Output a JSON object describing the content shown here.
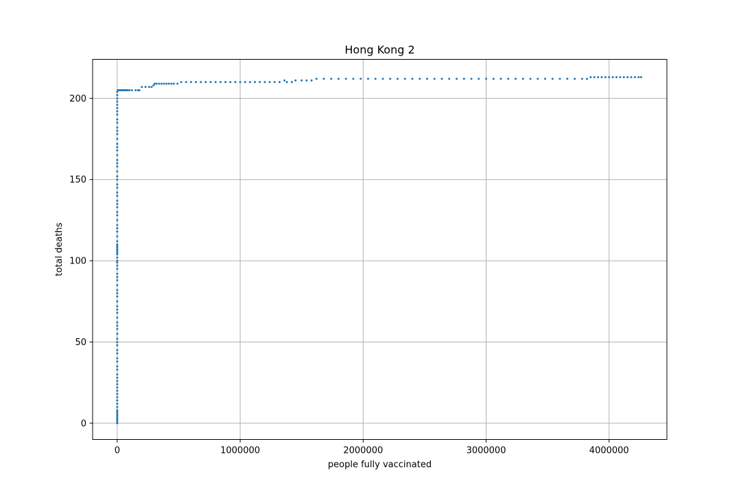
{
  "chart_data": {
    "type": "scatter",
    "title": "Hong Kong 2",
    "xlabel": "people fully vaccinated",
    "ylabel": "total deaths",
    "xlim": [
      -200000,
      4470000
    ],
    "ylim": [
      -10,
      224
    ],
    "xticks": [
      0,
      1000000,
      2000000,
      3000000,
      4000000
    ],
    "xtick_labels": [
      "0",
      "1000000",
      "2000000",
      "3000000",
      "4000000"
    ],
    "yticks": [
      0,
      50,
      100,
      150,
      200
    ],
    "ytick_labels": [
      "0",
      "50",
      "100",
      "150",
      "200"
    ],
    "grid": true,
    "marker_color": "#1f77b4",
    "series": [
      {
        "points": [
          [
            0,
            0
          ],
          [
            0,
            1
          ],
          [
            0,
            2
          ],
          [
            0,
            3
          ],
          [
            0,
            4
          ],
          [
            0,
            5
          ],
          [
            0,
            6
          ],
          [
            0,
            7
          ],
          [
            0,
            8
          ],
          [
            0,
            10
          ],
          [
            0,
            12
          ],
          [
            0,
            14
          ],
          [
            0,
            16
          ],
          [
            0,
            18
          ],
          [
            0,
            20
          ],
          [
            0,
            22
          ],
          [
            0,
            24
          ],
          [
            0,
            26
          ],
          [
            0,
            28
          ],
          [
            0,
            30
          ],
          [
            0,
            33
          ],
          [
            0,
            35
          ],
          [
            0,
            38
          ],
          [
            0,
            40
          ],
          [
            0,
            43
          ],
          [
            0,
            45
          ],
          [
            0,
            48
          ],
          [
            0,
            50
          ],
          [
            0,
            52
          ],
          [
            0,
            55
          ],
          [
            0,
            58
          ],
          [
            0,
            60
          ],
          [
            0,
            62
          ],
          [
            0,
            65
          ],
          [
            0,
            68
          ],
          [
            0,
            70
          ],
          [
            0,
            72
          ],
          [
            0,
            75
          ],
          [
            0,
            78
          ],
          [
            0,
            80
          ],
          [
            0,
            82
          ],
          [
            0,
            85
          ],
          [
            0,
            88
          ],
          [
            0,
            90
          ],
          [
            0,
            92
          ],
          [
            0,
            95
          ],
          [
            0,
            97
          ],
          [
            0,
            99
          ],
          [
            0,
            100
          ],
          [
            0,
            102
          ],
          [
            0,
            104
          ],
          [
            0,
            105
          ],
          [
            0,
            106
          ],
          [
            0,
            107
          ],
          [
            0,
            108
          ],
          [
            0,
            109
          ],
          [
            0,
            110
          ],
          [
            0,
            112
          ],
          [
            0,
            115
          ],
          [
            0,
            118
          ],
          [
            0,
            120
          ],
          [
            0,
            122
          ],
          [
            0,
            125
          ],
          [
            0,
            128
          ],
          [
            0,
            130
          ],
          [
            0,
            133
          ],
          [
            0,
            135
          ],
          [
            0,
            137
          ],
          [
            0,
            140
          ],
          [
            0,
            142
          ],
          [
            0,
            145
          ],
          [
            0,
            147
          ],
          [
            0,
            150
          ],
          [
            0,
            152
          ],
          [
            0,
            155
          ],
          [
            0,
            158
          ],
          [
            0,
            160
          ],
          [
            0,
            162
          ],
          [
            0,
            165
          ],
          [
            0,
            168
          ],
          [
            0,
            170
          ],
          [
            0,
            172
          ],
          [
            0,
            175
          ],
          [
            0,
            178
          ],
          [
            0,
            180
          ],
          [
            0,
            182
          ],
          [
            0,
            185
          ],
          [
            0,
            187
          ],
          [
            0,
            190
          ],
          [
            0,
            192
          ],
          [
            0,
            194
          ],
          [
            0,
            196
          ],
          [
            0,
            198
          ],
          [
            0,
            200
          ],
          [
            0,
            202
          ],
          [
            0,
            204
          ],
          [
            5000,
            205
          ],
          [
            15000,
            205
          ],
          [
            25000,
            205
          ],
          [
            35000,
            205
          ],
          [
            45000,
            205
          ],
          [
            55000,
            205
          ],
          [
            65000,
            205
          ],
          [
            75000,
            205
          ],
          [
            85000,
            205
          ],
          [
            100000,
            205
          ],
          [
            120000,
            205
          ],
          [
            150000,
            205
          ],
          [
            170000,
            205
          ],
          [
            180000,
            205
          ],
          [
            200000,
            207
          ],
          [
            230000,
            207
          ],
          [
            260000,
            207
          ],
          [
            280000,
            207
          ],
          [
            295000,
            208
          ],
          [
            305000,
            209
          ],
          [
            320000,
            209
          ],
          [
            340000,
            209
          ],
          [
            360000,
            209
          ],
          [
            380000,
            209
          ],
          [
            400000,
            209
          ],
          [
            420000,
            209
          ],
          [
            440000,
            209
          ],
          [
            460000,
            209
          ],
          [
            490000,
            209
          ],
          [
            520000,
            210
          ],
          [
            560000,
            210
          ],
          [
            600000,
            210
          ],
          [
            640000,
            210
          ],
          [
            680000,
            210
          ],
          [
            720000,
            210
          ],
          [
            760000,
            210
          ],
          [
            800000,
            210
          ],
          [
            840000,
            210
          ],
          [
            880000,
            210
          ],
          [
            920000,
            210
          ],
          [
            960000,
            210
          ],
          [
            1000000,
            210
          ],
          [
            1040000,
            210
          ],
          [
            1080000,
            210
          ],
          [
            1120000,
            210
          ],
          [
            1160000,
            210
          ],
          [
            1200000,
            210
          ],
          [
            1240000,
            210
          ],
          [
            1280000,
            210
          ],
          [
            1320000,
            210
          ],
          [
            1360000,
            211
          ],
          [
            1380000,
            210
          ],
          [
            1420000,
            210
          ],
          [
            1450000,
            211
          ],
          [
            1500000,
            211
          ],
          [
            1540000,
            211
          ],
          [
            1580000,
            211
          ],
          [
            1620000,
            212
          ],
          [
            1680000,
            212
          ],
          [
            1740000,
            212
          ],
          [
            1800000,
            212
          ],
          [
            1860000,
            212
          ],
          [
            1920000,
            212
          ],
          [
            1980000,
            212
          ],
          [
            2040000,
            212
          ],
          [
            2100000,
            212
          ],
          [
            2160000,
            212
          ],
          [
            2220000,
            212
          ],
          [
            2280000,
            212
          ],
          [
            2340000,
            212
          ],
          [
            2400000,
            212
          ],
          [
            2460000,
            212
          ],
          [
            2520000,
            212
          ],
          [
            2580000,
            212
          ],
          [
            2640000,
            212
          ],
          [
            2700000,
            212
          ],
          [
            2760000,
            212
          ],
          [
            2820000,
            212
          ],
          [
            2880000,
            212
          ],
          [
            2940000,
            212
          ],
          [
            3000000,
            212
          ],
          [
            3060000,
            212
          ],
          [
            3120000,
            212
          ],
          [
            3180000,
            212
          ],
          [
            3240000,
            212
          ],
          [
            3300000,
            212
          ],
          [
            3360000,
            212
          ],
          [
            3420000,
            212
          ],
          [
            3480000,
            212
          ],
          [
            3540000,
            212
          ],
          [
            3600000,
            212
          ],
          [
            3660000,
            212
          ],
          [
            3720000,
            212
          ],
          [
            3780000,
            212
          ],
          [
            3820000,
            212
          ],
          [
            3850000,
            213
          ],
          [
            3880000,
            213
          ],
          [
            3910000,
            213
          ],
          [
            3940000,
            213
          ],
          [
            3970000,
            213
          ],
          [
            4000000,
            213
          ],
          [
            4030000,
            213
          ],
          [
            4060000,
            213
          ],
          [
            4090000,
            213
          ],
          [
            4120000,
            213
          ],
          [
            4150000,
            213
          ],
          [
            4180000,
            213
          ],
          [
            4210000,
            213
          ],
          [
            4240000,
            213
          ],
          [
            4260000,
            213
          ]
        ]
      }
    ]
  }
}
